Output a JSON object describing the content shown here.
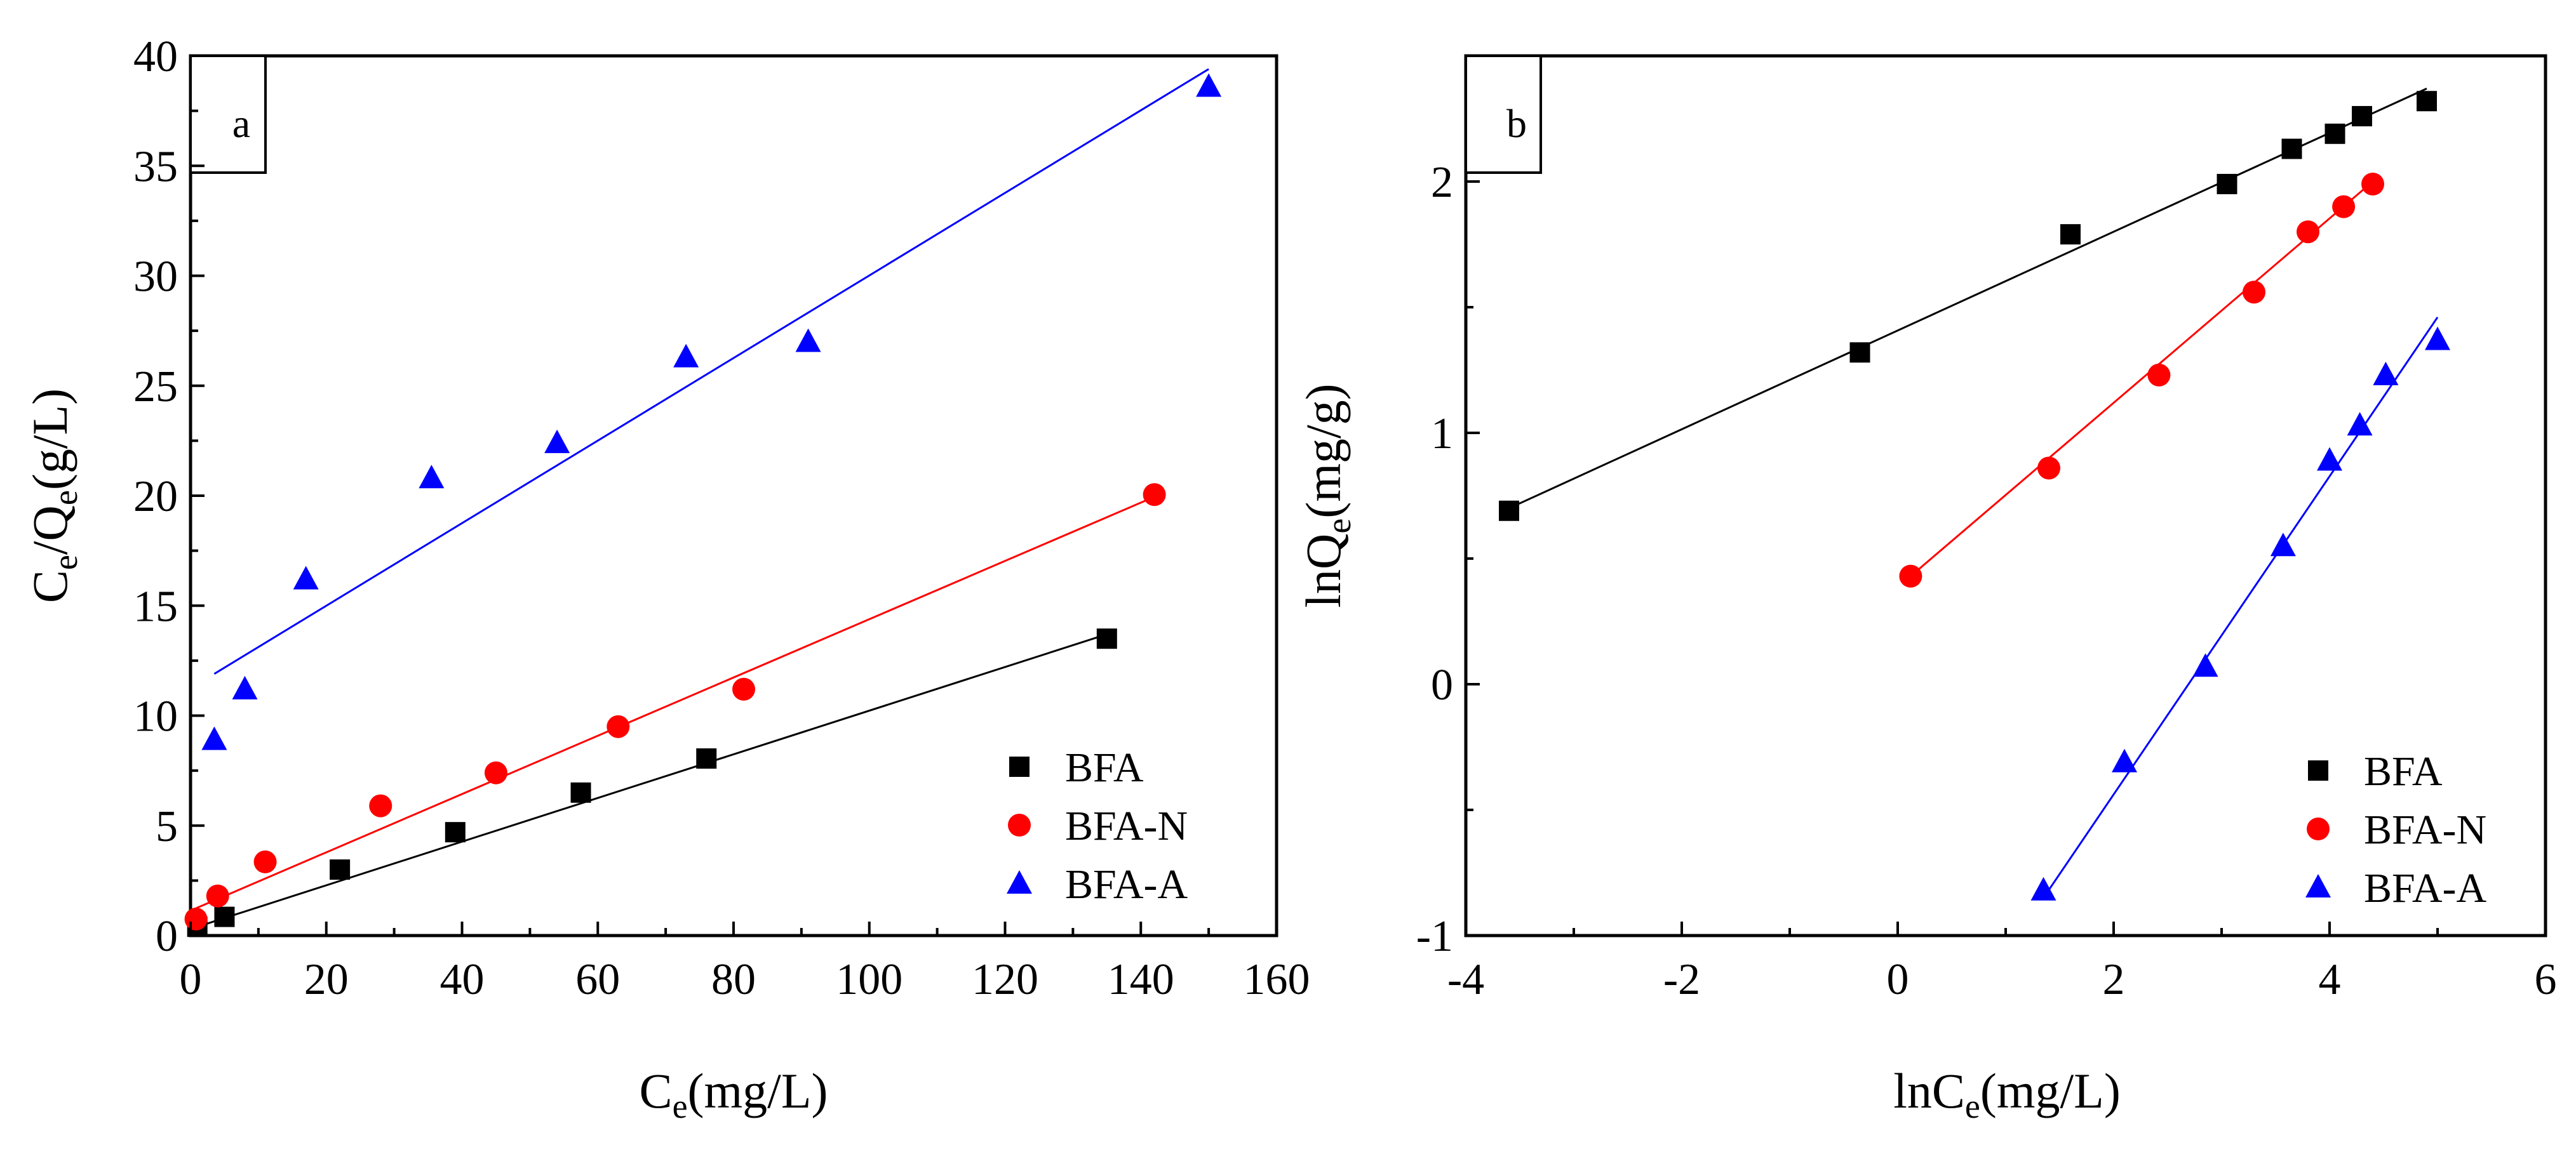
{
  "chart_data": [
    {
      "type": "scatter",
      "panel_label": "a",
      "xlabel": {
        "main": "C",
        "sub": "e",
        "rest": "(mg/L)"
      },
      "ylabel": {
        "p1": "C",
        "s1": "e",
        "p2": "/Q",
        "s2": "e",
        "p3": "(g/L)"
      },
      "xlim": [
        0,
        160
      ],
      "ylim": [
        0,
        40
      ],
      "xticks": [
        "0",
        "20",
        "40",
        "60",
        "80",
        "100",
        "120",
        "140",
        "160"
      ],
      "yticks": [
        "0",
        "5",
        "10",
        "15",
        "20",
        "25",
        "30",
        "35",
        "40"
      ],
      "legend_position": "bottom-right",
      "series": [
        {
          "name": "BFA",
          "marker": "square",
          "color": "#000000",
          "x": [
            1,
            5,
            22,
            39,
            57.5,
            76,
            135
          ],
          "y": [
            0.4,
            0.85,
            3.0,
            4.7,
            6.5,
            8.05,
            13.5
          ],
          "fit": {
            "x": [
              1,
              135
            ],
            "y": [
              0.4,
              13.7
            ]
          }
        },
        {
          "name": "BFA-N",
          "marker": "circle",
          "color": "#ff0000",
          "x": [
            0.8,
            4,
            11,
            28,
            45,
            63,
            81.5,
            142
          ],
          "y": [
            0.75,
            1.8,
            3.35,
            5.9,
            7.4,
            9.5,
            11.2,
            20.05
          ],
          "fit": {
            "x": [
              0.5,
              142
            ],
            "y": [
              1.2,
              19.95
            ]
          }
        },
        {
          "name": "BFA-A",
          "marker": "triangle",
          "color": "#0000ff",
          "x": [
            3.5,
            8,
            17,
            35.5,
            54,
            73,
            91,
            150
          ],
          "y": [
            8.9,
            11.2,
            16.2,
            20.8,
            22.4,
            26.3,
            27.0,
            38.6
          ],
          "fit": {
            "x": [
              3.5,
              150
            ],
            "y": [
              11.9,
              39.4
            ]
          }
        }
      ]
    },
    {
      "type": "scatter",
      "panel_label": "b",
      "xlabel": {
        "main": "lnC",
        "sub": "e",
        "rest": "(mg/L)"
      },
      "ylabel": {
        "p1": "lnQ",
        "s1": "e",
        "p2": "(mg/g)"
      },
      "xlim": [
        -4,
        6
      ],
      "ylim": [
        -1,
        2.5
      ],
      "xticks": [
        "-4",
        "-2",
        "0",
        "2",
        "4",
        "6"
      ],
      "yticks": [
        "-1",
        "0",
        "1",
        "2"
      ],
      "ytick_values": [
        -1,
        0,
        1,
        2
      ],
      "legend_position": "bottom-right",
      "series": [
        {
          "name": "BFA",
          "marker": "square",
          "color": "#000000",
          "x": [
            -3.6,
            -0.35,
            1.6,
            3.05,
            3.65,
            4.05,
            4.3,
            4.9
          ],
          "y": [
            0.69,
            1.32,
            1.79,
            1.99,
            2.13,
            2.19,
            2.26,
            2.32
          ],
          "fit": {
            "x": [
              -3.6,
              4.9
            ],
            "y": [
              0.7,
              2.37
            ]
          }
        },
        {
          "name": "BFA-N",
          "marker": "circle",
          "color": "#ff0000",
          "x": [
            0.12,
            1.4,
            2.42,
            3.3,
            3.8,
            4.13,
            4.4
          ],
          "y": [
            0.43,
            0.86,
            1.23,
            1.56,
            1.8,
            1.9,
            1.99
          ],
          "fit": {
            "x": [
              0.12,
              4.4
            ],
            "y": [
              0.43,
              2.0
            ]
          }
        },
        {
          "name": "BFA-A",
          "marker": "triangle",
          "color": "#0000ff",
          "x": [
            1.35,
            2.1,
            2.85,
            3.57,
            4.0,
            4.28,
            4.52,
            5.0
          ],
          "y": [
            -0.82,
            -0.31,
            0.07,
            0.55,
            0.89,
            1.03,
            1.23,
            1.37
          ],
          "fit": {
            "x": [
              1.35,
              5.0
            ],
            "y": [
              -0.85,
              1.46
            ]
          }
        }
      ]
    }
  ]
}
